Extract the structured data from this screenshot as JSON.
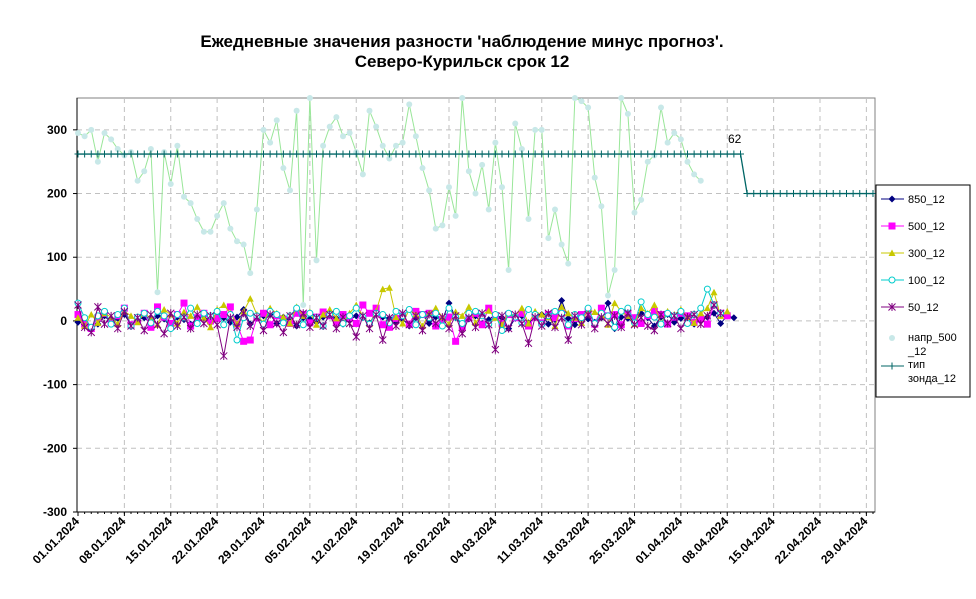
{
  "chart_data": {
    "type": "line",
    "title": "Ежедневные значения разности 'наблюдение минус прогноз'.",
    "subtitle": "Северо-Курильск    срок 12",
    "xlabel": "",
    "ylabel": "",
    "ylim": [
      -300,
      350
    ],
    "yticks": [
      -300,
      -200,
      -100,
      0,
      100,
      200,
      300
    ],
    "xlim": [
      "2024-01-01",
      "2024-04-30"
    ],
    "xtick_labels": [
      "01.01.2024",
      "08.01.2024",
      "15.01.2024",
      "22.01.2024",
      "29.01.2024",
      "05.02.2024",
      "12.02.2024",
      "19.02.2024",
      "26.02.2024",
      "04.03.2024",
      "11.03.2024",
      "18.03.2024",
      "25.03.2024",
      "01.04.2024",
      "08.04.2024",
      "15.04.2024",
      "22.04.2024",
      "29.04.2024"
    ],
    "grid": true,
    "legend_position": "right",
    "annotation": "62",
    "series": [
      {
        "name": "850_12",
        "color": "#000080",
        "marker": "diamond",
        "values": [
          -2,
          5,
          -12,
          -5,
          8,
          -3,
          4,
          10,
          -6,
          2,
          5,
          -4,
          8,
          3,
          -10,
          6,
          2,
          -5,
          4,
          8,
          -3,
          12,
          5,
          -2,
          6,
          18,
          -5,
          4,
          8,
          10,
          -4,
          6,
          2,
          -8,
          5,
          3,
          -2,
          6,
          10,
          4,
          -5,
          2,
          8,
          5,
          -3,
          12,
          6,
          4,
          -2,
          3,
          -8,
          5,
          10,
          -4,
          6,
          2,
          28,
          5,
          -6,
          3,
          8,
          -4,
          2,
          10,
          5,
          -12,
          4,
          8,
          -3,
          6,
          10,
          -5,
          2,
          32,
          4,
          -6,
          8,
          3,
          -2,
          5,
          28,
          -12,
          6,
          4,
          -3,
          12,
          5,
          -8,
          6,
          10,
          -2,
          4,
          8,
          -5,
          2,
          6,
          12,
          -4,
          8,
          5
        ]
      },
      {
        "name": "500_12",
        "color": "#FF00FF",
        "marker": "square",
        "values": [
          10,
          -5,
          -12,
          5,
          12,
          -3,
          8,
          20,
          -6,
          2,
          12,
          -10,
          22,
          6,
          -4,
          10,
          28,
          -8,
          5,
          12,
          0,
          4,
          10,
          22,
          -5,
          -32,
          -30,
          5,
          12,
          -6,
          8,
          2,
          -4,
          12,
          10,
          -3,
          6,
          14,
          8,
          -2,
          10,
          5,
          -4,
          25,
          12,
          20,
          -6,
          -10,
          4,
          8,
          -5,
          15,
          10,
          12,
          -8,
          2,
          6,
          -32,
          -10,
          5,
          12,
          -6,
          20,
          8,
          -4,
          10,
          5,
          12,
          -8,
          6,
          -3,
          10,
          5,
          12,
          -8,
          4,
          10,
          15,
          -5,
          20,
          8,
          10,
          -6,
          12,
          5,
          -4,
          8,
          15,
          10,
          -5,
          6,
          12,
          8,
          -2,
          4,
          -5,
          25,
          12,
          8
        ]
      },
      {
        "name": "300_12",
        "color": "#C8C800",
        "marker": "triangle",
        "values": [
          5,
          -8,
          10,
          -3,
          12,
          6,
          -5,
          15,
          8,
          -2,
          12,
          4,
          -6,
          18,
          10,
          -4,
          14,
          8,
          22,
          5,
          -10,
          18,
          25,
          12,
          -5,
          15,
          35,
          10,
          -3,
          20,
          12,
          6,
          -4,
          22,
          8,
          14,
          -6,
          10,
          18,
          4,
          -3,
          12,
          25,
          8,
          -5,
          15,
          50,
          52,
          6,
          -4,
          18,
          10,
          -8,
          12,
          20,
          6,
          -5,
          14,
          8,
          22,
          -3,
          10,
          16,
          5,
          -6,
          12,
          8,
          20,
          -4,
          15,
          10,
          6,
          -8,
          22,
          12,
          5,
          -3,
          18,
          14,
          10,
          -6,
          28,
          15,
          8,
          -5,
          20,
          12,
          25,
          -4,
          15,
          10,
          18,
          6,
          -3,
          12,
          20,
          45,
          8,
          15
        ]
      },
      {
        "name": "100_12",
        "color": "#00CCCC",
        "marker": "circle",
        "values": [
          28,
          5,
          -10,
          8,
          15,
          -5,
          10,
          20,
          -8,
          6,
          12,
          -3,
          15,
          8,
          -12,
          10,
          5,
          20,
          -4,
          12,
          8,
          15,
          -6,
          10,
          -30,
          5,
          12,
          8,
          -5,
          15,
          10,
          -3,
          8,
          20,
          -6,
          12,
          5,
          -8,
          10,
          15,
          -4,
          8,
          20,
          6,
          -5,
          12,
          10,
          -3,
          15,
          8,
          18,
          -6,
          10,
          5,
          12,
          -8,
          20,
          6,
          -4,
          12,
          15,
          8,
          -5,
          10,
          -15,
          12,
          6,
          -3,
          18,
          10,
          -5,
          8,
          15,
          12,
          -6,
          10,
          5,
          20,
          -4,
          12,
          8,
          -10,
          15,
          20,
          -3,
          30,
          10,
          6,
          -5,
          12,
          8,
          15,
          -4,
          10,
          20,
          50,
          25,
          12
        ]
      },
      {
        "name": "50_12",
        "color": "#800080",
        "marker": "x",
        "values": [
          25,
          -10,
          -18,
          22,
          -5,
          8,
          -12,
          15,
          -8,
          5,
          -15,
          10,
          -6,
          -20,
          12,
          -8,
          6,
          -12,
          10,
          -4,
          8,
          -6,
          -55,
          5,
          -10,
          12,
          -8,
          6,
          -15,
          10,
          -4,
          -18,
          8,
          -6,
          12,
          -10,
          5,
          -8,
          10,
          -12,
          6,
          -4,
          -25,
          8,
          -12,
          10,
          -30,
          5,
          -8,
          12,
          -6,
          8,
          -15,
          10,
          -4,
          6,
          -12,
          8,
          -20,
          5,
          -10,
          12,
          -6,
          -45,
          8,
          -12,
          10,
          -4,
          -35,
          6,
          -8,
          12,
          -10,
          5,
          -30,
          8,
          -6,
          10,
          -12,
          6,
          -4,
          8,
          -10,
          12,
          -6,
          5,
          -8,
          -15,
          10,
          -4,
          8,
          -12,
          6,
          10,
          -5,
          8,
          25,
          12
        ]
      },
      {
        "name": "напр_500_12",
        "color": "#C8E8E8",
        "line_color": "#99E699",
        "marker": "circle",
        "values": [
          295,
          290,
          300,
          250,
          295,
          285,
          270,
          260,
          265,
          220,
          235,
          270,
          45,
          265,
          215,
          275,
          195,
          185,
          160,
          140,
          140,
          165,
          185,
          145,
          125,
          120,
          75,
          175,
          300,
          280,
          315,
          240,
          205,
          330,
          25,
          350,
          95,
          275,
          305,
          320,
          290,
          295,
          265,
          230,
          330,
          305,
          275,
          255,
          275,
          280,
          340,
          290,
          240,
          205,
          145,
          150,
          210,
          165,
          350,
          235,
          200,
          245,
          175,
          280,
          210,
          80,
          310,
          270,
          160,
          300,
          300,
          130,
          175,
          120,
          90,
          350,
          345,
          335,
          225,
          180,
          40,
          80,
          350,
          325,
          170,
          190,
          250,
          260,
          335,
          280,
          295,
          285,
          250,
          230,
          220
        ]
      },
      {
        "name": "тип зонда_12",
        "color": "#006666",
        "marker": "plus",
        "note": "constant 262 from 01.01 to 10.04, then 200 to 30.04",
        "values_const": [
          {
            "from": "2024-01-01",
            "to": "2024-04-10",
            "value": 262
          },
          {
            "from": "2024-04-11",
            "to": "2024-04-30",
            "value": 200
          }
        ]
      }
    ]
  },
  "legend": {
    "items": [
      {
        "label": "850_12"
      },
      {
        "label": "500_12"
      },
      {
        "label": "300_12"
      },
      {
        "label": "100_12"
      },
      {
        "label": "50_12"
      },
      {
        "label_line1": "напр_500",
        "label_line2": "_12"
      },
      {
        "label_line1": "тип",
        "label_line2": "зонда_12"
      }
    ]
  }
}
